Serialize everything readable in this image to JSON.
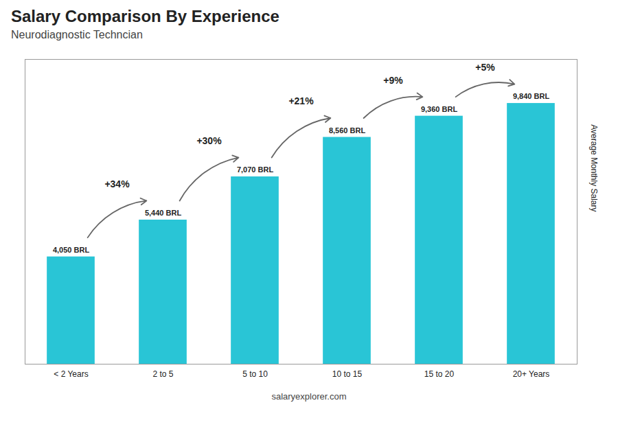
{
  "chart_data": {
    "type": "bar",
    "title": "Salary Comparison By Experience",
    "subtitle": "Neurodiagnostic Techncian",
    "ylabel": "Average Monthly Salary",
    "categories": [
      "< 2 Years",
      "2 to 5",
      "5 to 10",
      "10 to 15",
      "15 to 20",
      "20+ Years"
    ],
    "values": [
      4050,
      5440,
      7070,
      8560,
      9360,
      9840
    ],
    "value_labels": [
      "4,050 BRL",
      "5,440 BRL",
      "7,070 BRL",
      "8,560 BRL",
      "9,360 BRL",
      "9,840 BRL"
    ],
    "data_labels": true,
    "color": "#29c5d6",
    "ylim": [
      0,
      11500
    ],
    "tick_labels": "x",
    "grid": false,
    "annotations": [
      "+34%",
      "+30%",
      "+21%",
      "+9%",
      "+5%"
    ],
    "caption": "salaryexplorer.com"
  }
}
